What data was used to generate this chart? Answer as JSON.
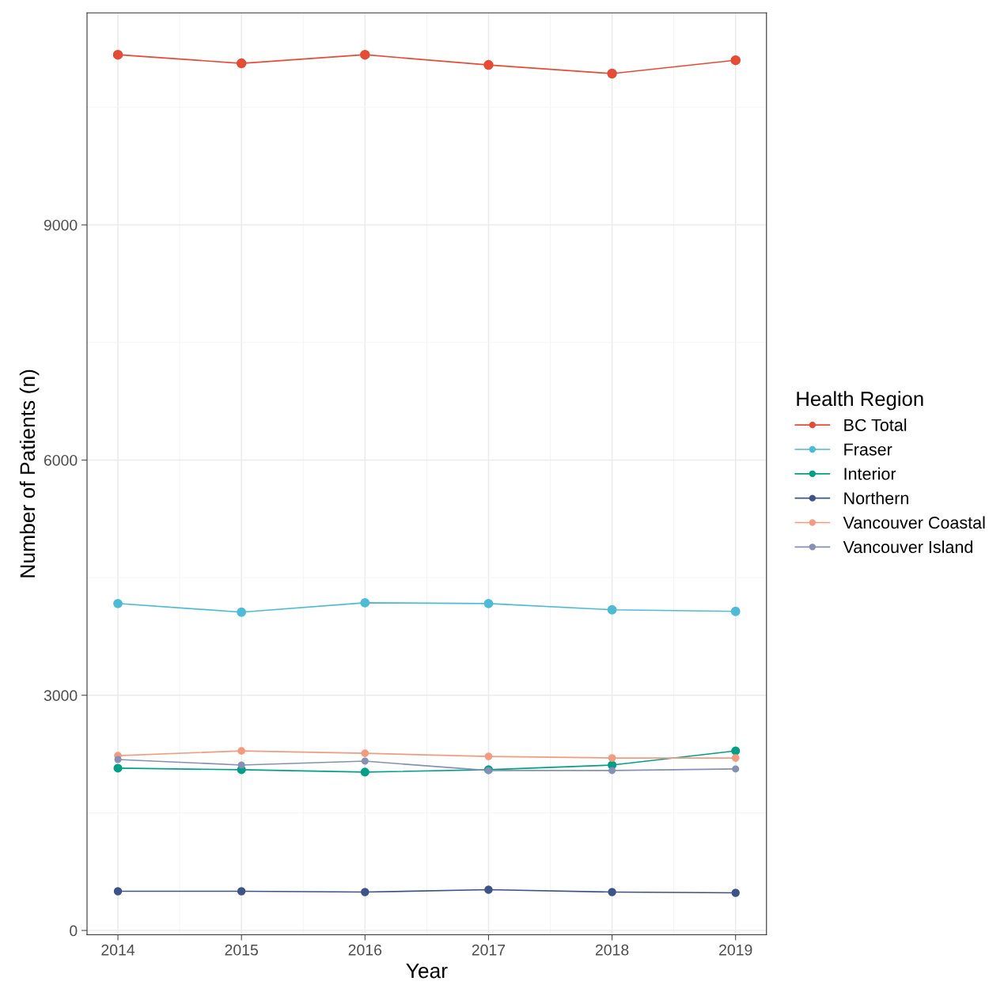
{
  "chart_data": {
    "type": "line",
    "xlabel": "Year",
    "ylabel": "Number of Patients (n)",
    "legend_title": "Health Region",
    "x": [
      2014,
      2015,
      2016,
      2017,
      2018,
      2019
    ],
    "series": [
      {
        "name": "BC Total",
        "color": "#e64b35",
        "values": [
          11170,
          11060,
          11170,
          11040,
          10930,
          11100
        ]
      },
      {
        "name": "Fraser",
        "color": "#4dbbd5",
        "values": [
          4170,
          4060,
          4180,
          4170,
          4090,
          4070
        ]
      },
      {
        "name": "Interior",
        "color": "#00a087",
        "values": [
          2070,
          2050,
          2020,
          2050,
          2110,
          2290
        ]
      },
      {
        "name": "Northern",
        "color": "#3c5488",
        "values": [
          500,
          500,
          490,
          520,
          490,
          480
        ]
      },
      {
        "name": "Vancouver Coastal",
        "color": "#f39b7f",
        "values": [
          2230,
          2290,
          2260,
          2220,
          2200,
          2200
        ]
      },
      {
        "name": "Vancouver Island",
        "color": "#8491b4",
        "values": [
          2180,
          2110,
          2160,
          2040,
          2040,
          2060
        ]
      }
    ],
    "xlim": [
      2013.75,
      2019.25
    ],
    "xticks": [
      2014,
      2015,
      2016,
      2017,
      2018,
      2019
    ],
    "ylim": [
      -55,
      11705
    ],
    "yticks": [
      0,
      3000,
      6000,
      9000
    ],
    "grid": true,
    "legend": "right",
    "marker": "circle",
    "line_style": "solid"
  }
}
